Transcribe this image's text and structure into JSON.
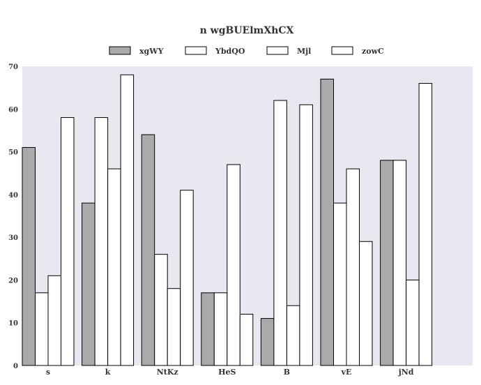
{
  "chart_data": {
    "type": "bar",
    "title": "n wgBUElmXhCX",
    "xlabel": "",
    "ylabel": "",
    "categories": [
      "s",
      "k",
      "NtKz",
      "HeS",
      "B",
      "vE",
      "jNd"
    ],
    "series": [
      {
        "name": "xgWY",
        "color": "#aaaaaa",
        "values": [
          51,
          38,
          54,
          17,
          11,
          67,
          48
        ]
      },
      {
        "name": "YbdQO",
        "color": "#ffffff",
        "values": [
          17,
          58,
          26,
          17,
          62,
          38,
          48
        ]
      },
      {
        "name": "Mjl",
        "color": "#ffffff",
        "values": [
          21,
          46,
          18,
          47,
          14,
          46,
          20
        ]
      },
      {
        "name": "zowC",
        "color": "#ffffff",
        "values": [
          58,
          68,
          41,
          12,
          61,
          29,
          66
        ]
      }
    ],
    "ylim": [
      0,
      70
    ],
    "yticks": [
      0,
      10,
      20,
      30,
      40,
      50,
      60,
      70
    ],
    "grid": false,
    "legend": "top-center",
    "background": "#e8e8f0"
  }
}
